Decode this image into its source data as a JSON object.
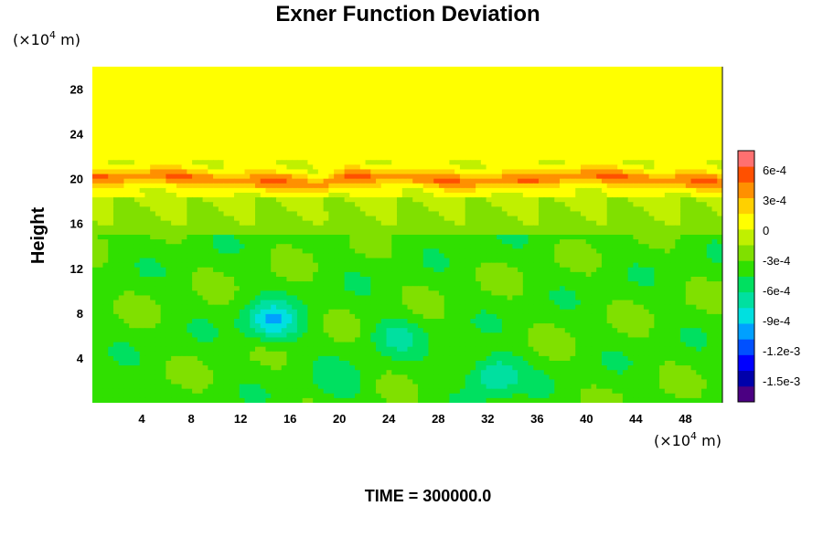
{
  "chart_data": {
    "type": "heatmap",
    "title": "Exner Function Deviation",
    "ylabel": "Height",
    "xlabel": "",
    "x_unit": "(×10",
    "x_unit_exp": "4",
    "x_unit_tail": " m)",
    "y_unit": "(×10",
    "y_unit_exp": "4",
    "y_unit_tail": " m)",
    "xlim": [
      0,
      51
    ],
    "ylim": [
      0,
      30
    ],
    "x_ticks": [
      4,
      8,
      12,
      16,
      20,
      24,
      28,
      32,
      36,
      40,
      44,
      48
    ],
    "x_tick_labels": [
      "4",
      "8",
      "12",
      "16",
      "20",
      "24",
      "28",
      "32",
      "36",
      "40",
      "44",
      "48"
    ],
    "y_ticks": [
      4,
      8,
      12,
      16,
      20,
      24,
      28
    ],
    "y_tick_labels": [
      "4",
      "8",
      "12",
      "16",
      "20",
      "24",
      "28"
    ],
    "colorbar": {
      "min": -0.0017,
      "max": 0.0008,
      "ticks": [
        0.0006,
        0.0003,
        0,
        -0.0003,
        -0.0006,
        -0.0009,
        -0.0012,
        -0.0015
      ],
      "tick_labels": [
        "6e-4",
        "3e-4",
        "0",
        "-3e-4",
        "-6e-4",
        "-9e-4",
        "-1.2e-3",
        "-1.5e-3"
      ],
      "colors": [
        "#4b0082",
        "#0000aa",
        "#0000ff",
        "#0050ff",
        "#00a0ff",
        "#00e0e0",
        "#00e0a0",
        "#00e060",
        "#30e000",
        "#80e000",
        "#c0f000",
        "#ffff00",
        "#ffd000",
        "#ff9000",
        "#ff5000",
        "#ff7070"
      ]
    },
    "field_description": {
      "background_upper": 3e-05,
      "stable_band": {
        "y": 20,
        "value": 0.0004
      },
      "lower_region_mean": -0.00035,
      "minima": [
        {
          "x": 14.5,
          "y": 7.2,
          "value": -0.0009
        },
        {
          "x": 32.5,
          "y": 2.5,
          "value": -0.0008
        },
        {
          "x": 24.5,
          "y": 6.0,
          "value": -0.0006
        },
        {
          "x": 20,
          "y": 1.5,
          "value": -0.0005
        },
        {
          "x": 2.5,
          "y": 0.5,
          "value": -0.0005
        }
      ]
    },
    "footer": "TIME = 300000.0"
  }
}
